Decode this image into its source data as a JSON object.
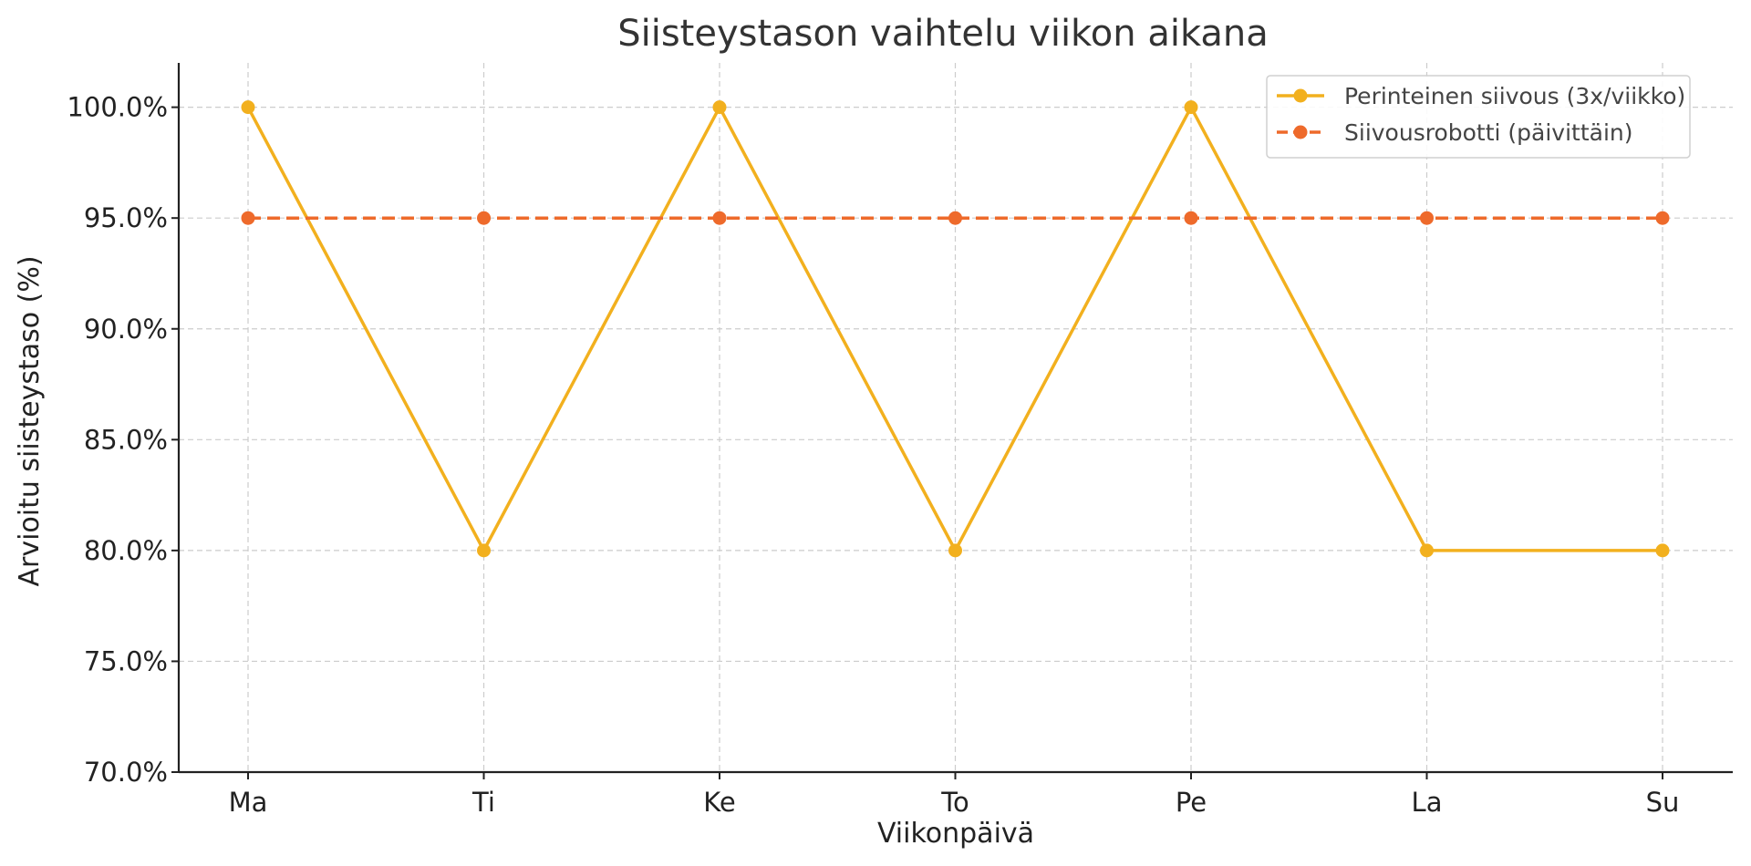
{
  "chart_data": {
    "type": "line",
    "title": "Siisteystason vaihtelu viikon aikana",
    "xlabel": "Viikonpäivä",
    "ylabel": "Arvioitu siisteystaso (%)",
    "categories": [
      "Ma",
      "Ti",
      "Ke",
      "To",
      "Pe",
      "La",
      "Su"
    ],
    "ylim": [
      70,
      102
    ],
    "yticks": [
      70,
      75,
      80,
      85,
      90,
      95,
      100
    ],
    "ytick_labels": [
      "70.0%",
      "75.0%",
      "80.0%",
      "85.0%",
      "90.0%",
      "95.0%",
      "100.0%"
    ],
    "grid": true,
    "legend_position": "top-right",
    "series": [
      {
        "name": "Perinteinen siivous (3x/viikko)",
        "values": [
          100,
          80,
          100,
          80,
          100,
          80,
          80
        ],
        "color": "#F2B01E",
        "line_style": "solid",
        "marker": "circle"
      },
      {
        "name": "Siivousrobotti (päivittäin)",
        "values": [
          95,
          95,
          95,
          95,
          95,
          95,
          95
        ],
        "color": "#EE6A2B",
        "line_style": "dashed",
        "marker": "circle"
      }
    ]
  }
}
